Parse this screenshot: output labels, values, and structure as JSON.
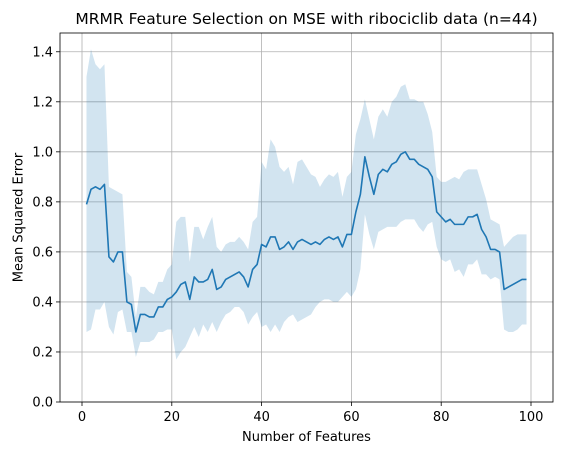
{
  "chart_data": {
    "type": "line",
    "title": "MRMR Feature Selection on MSE with ribociclib data (n=44)",
    "xlabel": "Number of Features",
    "ylabel": "Mean Squared Error",
    "xlim": [
      -4.9,
      104.9
    ],
    "ylim": [
      0.0,
      1.475
    ],
    "xticks": [
      0,
      20,
      40,
      60,
      80,
      100
    ],
    "yticks": [
      0.0,
      0.2,
      0.4,
      0.6,
      0.8,
      1.0,
      1.2,
      1.4
    ],
    "grid": true,
    "colors": {
      "line": "#1f77b4",
      "band": "#1f77b4"
    },
    "x": [
      1,
      2,
      3,
      4,
      5,
      6,
      7,
      8,
      9,
      10,
      11,
      12,
      13,
      14,
      15,
      16,
      17,
      18,
      19,
      20,
      21,
      22,
      23,
      24,
      25,
      26,
      27,
      28,
      29,
      30,
      31,
      32,
      33,
      34,
      35,
      36,
      37,
      38,
      39,
      40,
      41,
      42,
      43,
      44,
      45,
      46,
      47,
      48,
      49,
      50,
      51,
      52,
      53,
      54,
      55,
      56,
      57,
      58,
      59,
      60,
      61,
      62,
      63,
      64,
      65,
      66,
      67,
      68,
      69,
      70,
      71,
      72,
      73,
      74,
      75,
      76,
      77,
      78,
      79,
      80,
      81,
      82,
      83,
      84,
      85,
      86,
      87,
      88,
      89,
      90,
      91,
      92,
      93,
      94,
      95,
      96,
      97,
      98,
      99
    ],
    "mean": [
      0.79,
      0.85,
      0.86,
      0.85,
      0.87,
      0.58,
      0.56,
      0.6,
      0.6,
      0.4,
      0.39,
      0.28,
      0.35,
      0.35,
      0.34,
      0.34,
      0.38,
      0.38,
      0.41,
      0.42,
      0.44,
      0.47,
      0.48,
      0.41,
      0.5,
      0.48,
      0.48,
      0.49,
      0.53,
      0.45,
      0.46,
      0.49,
      0.5,
      0.51,
      0.52,
      0.5,
      0.46,
      0.53,
      0.55,
      0.63,
      0.62,
      0.66,
      0.66,
      0.61,
      0.62,
      0.64,
      0.61,
      0.64,
      0.65,
      0.64,
      0.63,
      0.64,
      0.63,
      0.65,
      0.66,
      0.65,
      0.66,
      0.62,
      0.67,
      0.67,
      0.76,
      0.83,
      0.98,
      0.9,
      0.83,
      0.91,
      0.93,
      0.92,
      0.95,
      0.96,
      0.99,
      1.0,
      0.97,
      0.97,
      0.95,
      0.94,
      0.93,
      0.9,
      0.76,
      0.74,
      0.72,
      0.73,
      0.71,
      0.71,
      0.71,
      0.74,
      0.74,
      0.75,
      0.69,
      0.66,
      0.61,
      0.61,
      0.6,
      0.45,
      0.46,
      0.47,
      0.48,
      0.49,
      0.49
    ],
    "upper": [
      1.3,
      1.41,
      1.35,
      1.33,
      1.35,
      0.86,
      0.85,
      0.84,
      0.83,
      0.52,
      0.5,
      0.34,
      0.46,
      0.46,
      0.44,
      0.43,
      0.48,
      0.48,
      0.53,
      0.55,
      0.72,
      0.74,
      0.74,
      0.56,
      0.7,
      0.7,
      0.65,
      0.7,
      0.74,
      0.62,
      0.6,
      0.63,
      0.64,
      0.64,
      0.66,
      0.64,
      0.61,
      0.72,
      0.74,
      0.96,
      0.93,
      1.05,
      1.02,
      0.94,
      0.92,
      0.94,
      0.87,
      0.96,
      0.97,
      0.94,
      0.91,
      0.9,
      0.86,
      0.89,
      0.91,
      0.9,
      0.92,
      0.82,
      0.9,
      0.92,
      1.07,
      1.13,
      1.21,
      1.13,
      1.05,
      1.14,
      1.17,
      1.14,
      1.2,
      1.22,
      1.26,
      1.27,
      1.21,
      1.21,
      1.2,
      1.2,
      1.15,
      1.08,
      0.9,
      0.88,
      0.88,
      0.89,
      0.9,
      0.89,
      0.92,
      0.93,
      0.93,
      0.93,
      0.87,
      0.81,
      0.73,
      0.72,
      0.71,
      0.62,
      0.64,
      0.66,
      0.67,
      0.67,
      0.67
    ],
    "lower": [
      0.28,
      0.29,
      0.37,
      0.37,
      0.4,
      0.3,
      0.27,
      0.36,
      0.37,
      0.28,
      0.28,
      0.18,
      0.24,
      0.24,
      0.24,
      0.25,
      0.28,
      0.28,
      0.29,
      0.29,
      0.17,
      0.2,
      0.22,
      0.26,
      0.3,
      0.26,
      0.31,
      0.28,
      0.32,
      0.28,
      0.32,
      0.35,
      0.36,
      0.38,
      0.38,
      0.36,
      0.31,
      0.34,
      0.36,
      0.3,
      0.31,
      0.28,
      0.31,
      0.28,
      0.32,
      0.34,
      0.35,
      0.32,
      0.33,
      0.34,
      0.35,
      0.38,
      0.4,
      0.41,
      0.41,
      0.4,
      0.4,
      0.42,
      0.44,
      0.42,
      0.45,
      0.53,
      0.75,
      0.67,
      0.61,
      0.68,
      0.69,
      0.7,
      0.7,
      0.7,
      0.72,
      0.73,
      0.73,
      0.73,
      0.7,
      0.68,
      0.71,
      0.72,
      0.62,
      0.57,
      0.56,
      0.57,
      0.52,
      0.53,
      0.5,
      0.55,
      0.55,
      0.57,
      0.51,
      0.51,
      0.49,
      0.5,
      0.49,
      0.29,
      0.28,
      0.28,
      0.29,
      0.31,
      0.31
    ]
  }
}
